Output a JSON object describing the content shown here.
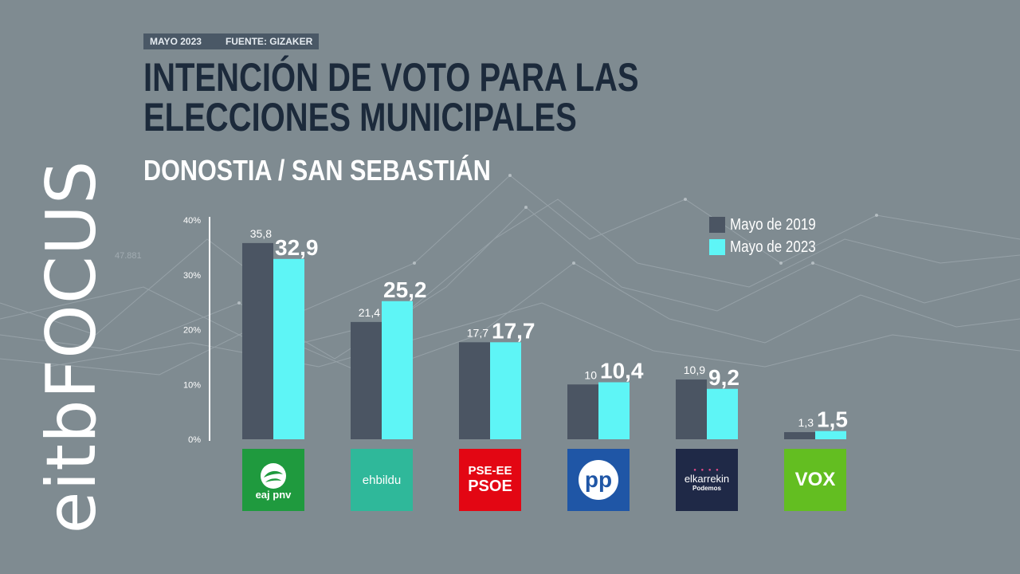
{
  "brand": {
    "name": "eitbFOCUS"
  },
  "header": {
    "date": "MAYO 2023",
    "source": "FUENTE: GIZAKER"
  },
  "title": "INTENCIÓN DE VOTO PARA LAS ELECCIONES MUNICIPALES",
  "subtitle": "DONOSTIA / SAN SEBASTIÁN",
  "background_readout": "47.881",
  "colors": {
    "series_2019": "#4b5563",
    "series_2023": "#5ef5f6",
    "background": "#7f8b91"
  },
  "logos": {
    "pnv": {
      "line1": "eaj",
      "line2": "pnv",
      "color": "#1f9a3e"
    },
    "ehbildu": {
      "text": "ehbildu",
      "color": "#2fb89a"
    },
    "psoe": {
      "line1": "PSE-EE",
      "line2": "PSOE",
      "color": "#e30613"
    },
    "pp": {
      "text": "pp",
      "color": "#1f56a6"
    },
    "elkarrekin": {
      "line1": "elkarrekin",
      "line2": "Podemos",
      "color": "#1f2947"
    },
    "vox": {
      "text": "VOX",
      "color": "#63be21"
    }
  },
  "chart_data": {
    "type": "bar",
    "title": "INTENCIÓN DE VOTO PARA LAS ELECCIONES MUNICIPALES",
    "subtitle": "DONOSTIA / SAN SEBASTIÁN",
    "categories": [
      "EAJ-PNV",
      "EH Bildu",
      "PSE-EE (PSOE)",
      "PP",
      "Elkarrekin Podemos",
      "VOX"
    ],
    "series": [
      {
        "name": "Mayo de 2019",
        "values": [
          35.8,
          21.4,
          17.7,
          10,
          10.9,
          1.3
        ],
        "labels": [
          "35,8",
          "21,4",
          "17,7",
          "10",
          "10,9",
          "1,3"
        ]
      },
      {
        "name": "Mayo de 2023",
        "values": [
          32.9,
          25.2,
          17.7,
          10.4,
          9.2,
          1.5
        ],
        "labels": [
          "32,9",
          "25,2",
          "17,7",
          "10,4",
          "9,2",
          "1,5"
        ]
      }
    ],
    "ylim": [
      0,
      40
    ],
    "yticks": [
      0,
      10,
      20,
      30,
      40
    ],
    "ytick_labels": [
      "0%",
      "10%",
      "20%",
      "30%",
      "40%"
    ],
    "legend": "top-right",
    "xlabel": "",
    "ylabel": ""
  }
}
